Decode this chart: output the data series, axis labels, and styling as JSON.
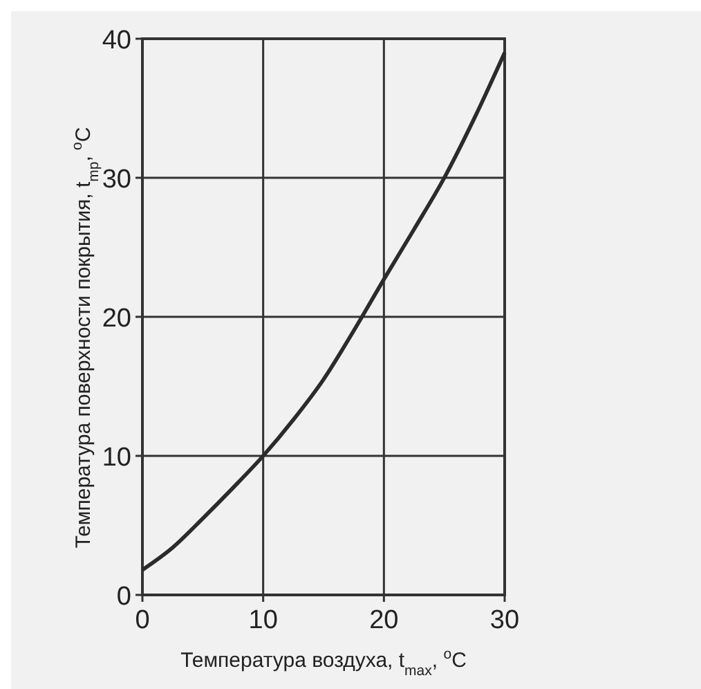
{
  "chart_data": {
    "type": "line",
    "xlabel": "Температура воздуха, t$_{max}$, $^{o}$C",
    "ylabel": "Температура поверхности покрытия, t$_{mp}$, $^{o}$C",
    "x": [
      0,
      2.5,
      5,
      7.5,
      10,
      12.5,
      15,
      17.5,
      20,
      22.5,
      25,
      27.5,
      30
    ],
    "series": [
      {
        "color": "#2b2b2b",
        "values": [
          1.8,
          3.4,
          5.5,
          7.7,
          10,
          12.6,
          15.5,
          19,
          22.7,
          26.3,
          30,
          34.3,
          39
        ]
      }
    ],
    "xlim": [
      0,
      30
    ],
    "ylim": [
      0,
      40
    ],
    "xticks": [
      0,
      10,
      20,
      30
    ],
    "yticks": [
      0,
      10,
      20,
      30,
      40
    ],
    "grid": true,
    "marker": "none",
    "line_style": "solid"
  }
}
